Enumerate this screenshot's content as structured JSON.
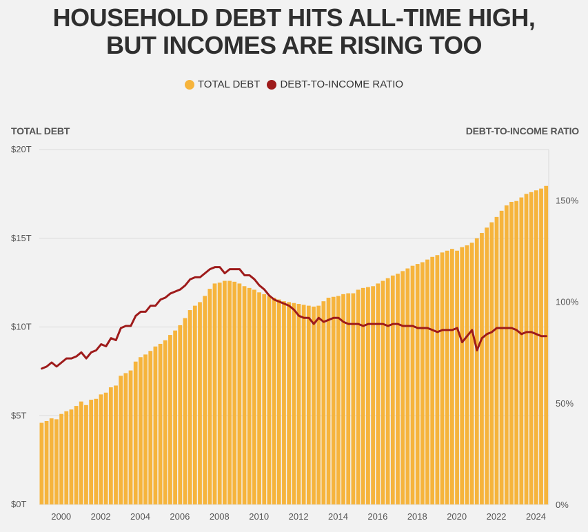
{
  "title_line1": "HOUSEHOLD DEBT HITS ALL-TIME HIGH,",
  "title_line2": "BUT INCOMES ARE RISING TOO",
  "legend": {
    "total_debt": "TOTAL DEBT",
    "ratio": "DEBT-TO-INCOME RATIO"
  },
  "colors": {
    "debt": "#f6b43c",
    "ratio": "#9e1b1b",
    "grid": "#d9d9d9"
  },
  "chart_data": {
    "type": "bar+line",
    "left_axis_title": "TOTAL DEBT",
    "right_axis_title": "DEBT-TO-INCOME RATIO",
    "left_ticks": [
      "$0T",
      "$5T",
      "$10T",
      "$15T",
      "$20T"
    ],
    "left_tick_values": [
      0,
      5,
      10,
      15,
      20
    ],
    "right_ticks": [
      "0%",
      "50%",
      "100%",
      "150%"
    ],
    "right_tick_values": [
      0,
      50,
      100,
      150
    ],
    "x_ticks": [
      "2000",
      "2002",
      "2004",
      "2006",
      "2008",
      "2010",
      "2012",
      "2014",
      "2016",
      "2018",
      "2020",
      "2022",
      "2024"
    ],
    "x_tick_values": [
      2000,
      2002,
      2004,
      2006,
      2008,
      2010,
      2012,
      2014,
      2016,
      2018,
      2020,
      2022,
      2024
    ],
    "ylim_left": [
      0,
      20
    ],
    "ylim_right": [
      0,
      175
    ],
    "xlim": [
      1999,
      2024.75
    ],
    "series": [
      {
        "name": "TOTAL DEBT",
        "x": [
          1999.0,
          1999.25,
          1999.5,
          1999.75,
          2000.0,
          2000.25,
          2000.5,
          2000.75,
          2001.0,
          2001.25,
          2001.5,
          2001.75,
          2002.0,
          2002.25,
          2002.5,
          2002.75,
          2003.0,
          2003.25,
          2003.5,
          2003.75,
          2004.0,
          2004.25,
          2004.5,
          2004.75,
          2005.0,
          2005.25,
          2005.5,
          2005.75,
          2006.0,
          2006.25,
          2006.5,
          2006.75,
          2007.0,
          2007.25,
          2007.5,
          2007.75,
          2008.0,
          2008.25,
          2008.5,
          2008.75,
          2009.0,
          2009.25,
          2009.5,
          2009.75,
          2010.0,
          2010.25,
          2010.5,
          2010.75,
          2011.0,
          2011.25,
          2011.5,
          2011.75,
          2012.0,
          2012.25,
          2012.5,
          2012.75,
          2013.0,
          2013.25,
          2013.5,
          2013.75,
          2014.0,
          2014.25,
          2014.5,
          2014.75,
          2015.0,
          2015.25,
          2015.5,
          2015.75,
          2016.0,
          2016.25,
          2016.5,
          2016.75,
          2017.0,
          2017.25,
          2017.5,
          2017.75,
          2018.0,
          2018.25,
          2018.5,
          2018.75,
          2019.0,
          2019.25,
          2019.5,
          2019.75,
          2020.0,
          2020.25,
          2020.5,
          2020.75,
          2021.0,
          2021.25,
          2021.5,
          2021.75,
          2022.0,
          2022.25,
          2022.5,
          2022.75,
          2023.0,
          2023.25,
          2023.5,
          2023.75,
          2024.0,
          2024.25,
          2024.5
        ],
        "values": [
          4.6,
          4.7,
          4.85,
          4.8,
          5.1,
          5.25,
          5.35,
          5.55,
          5.8,
          5.6,
          5.9,
          5.95,
          6.2,
          6.3,
          6.6,
          6.7,
          7.25,
          7.4,
          7.55,
          8.05,
          8.3,
          8.45,
          8.65,
          8.9,
          9.05,
          9.25,
          9.55,
          9.8,
          10.1,
          10.5,
          10.95,
          11.2,
          11.4,
          11.75,
          12.15,
          12.45,
          12.5,
          12.6,
          12.6,
          12.55,
          12.45,
          12.3,
          12.2,
          12.1,
          11.95,
          11.85,
          11.75,
          11.65,
          11.55,
          11.45,
          11.4,
          11.35,
          11.3,
          11.25,
          11.2,
          11.15,
          11.2,
          11.45,
          11.65,
          11.7,
          11.75,
          11.85,
          11.9,
          11.9,
          12.1,
          12.2,
          12.25,
          12.3,
          12.45,
          12.6,
          12.75,
          12.9,
          13.0,
          13.15,
          13.3,
          13.45,
          13.55,
          13.65,
          13.8,
          13.95,
          14.05,
          14.2,
          14.3,
          14.4,
          14.3,
          14.5,
          14.6,
          14.75,
          15.0,
          15.3,
          15.6,
          15.9,
          16.2,
          16.55,
          16.85,
          17.05,
          17.1,
          17.3,
          17.5,
          17.6,
          17.7,
          17.8,
          17.95
        ]
      },
      {
        "name": "DEBT-TO-INCOME RATIO",
        "x": [
          1999.0,
          1999.25,
          1999.5,
          1999.75,
          2000.0,
          2000.25,
          2000.5,
          2000.75,
          2001.0,
          2001.25,
          2001.5,
          2001.75,
          2002.0,
          2002.25,
          2002.5,
          2002.75,
          2003.0,
          2003.25,
          2003.5,
          2003.75,
          2004.0,
          2004.25,
          2004.5,
          2004.75,
          2005.0,
          2005.25,
          2005.5,
          2005.75,
          2006.0,
          2006.25,
          2006.5,
          2006.75,
          2007.0,
          2007.25,
          2007.5,
          2007.75,
          2008.0,
          2008.25,
          2008.5,
          2008.75,
          2009.0,
          2009.25,
          2009.5,
          2009.75,
          2010.0,
          2010.25,
          2010.5,
          2010.75,
          2011.0,
          2011.25,
          2011.5,
          2011.75,
          2012.0,
          2012.25,
          2012.5,
          2012.75,
          2013.0,
          2013.25,
          2013.5,
          2013.75,
          2014.0,
          2014.25,
          2014.5,
          2014.75,
          2015.0,
          2015.25,
          2015.5,
          2015.75,
          2016.0,
          2016.25,
          2016.5,
          2016.75,
          2017.0,
          2017.25,
          2017.5,
          2017.75,
          2018.0,
          2018.25,
          2018.5,
          2018.75,
          2019.0,
          2019.25,
          2019.5,
          2019.75,
          2020.0,
          2020.25,
          2020.5,
          2020.75,
          2021.0,
          2021.25,
          2021.5,
          2021.75,
          2022.0,
          2022.25,
          2022.5,
          2022.75,
          2023.0,
          2023.25,
          2023.5,
          2023.75,
          2024.0,
          2024.25,
          2024.5
        ],
        "values": [
          67,
          68,
          70,
          68,
          70,
          72,
          72,
          73,
          75,
          72,
          75,
          76,
          79,
          78,
          82,
          81,
          87,
          88,
          88,
          93,
          95,
          95,
          98,
          98,
          101,
          102,
          104,
          105,
          106,
          108,
          111,
          112,
          112,
          114,
          116,
          117,
          117,
          114,
          116,
          116,
          116,
          113,
          113,
          111,
          108,
          106,
          103,
          101,
          100,
          99,
          98,
          96,
          93,
          92,
          92,
          89,
          92,
          90,
          91,
          92,
          92,
          90,
          89,
          89,
          89,
          88,
          89,
          89,
          89,
          89,
          88,
          89,
          89,
          88,
          88,
          88,
          87,
          87,
          87,
          86,
          85,
          86,
          86,
          86,
          87,
          80,
          83,
          86,
          76,
          82,
          84,
          85,
          87,
          87,
          87,
          87,
          86,
          84,
          85,
          85,
          84,
          83,
          83
        ]
      }
    ]
  }
}
